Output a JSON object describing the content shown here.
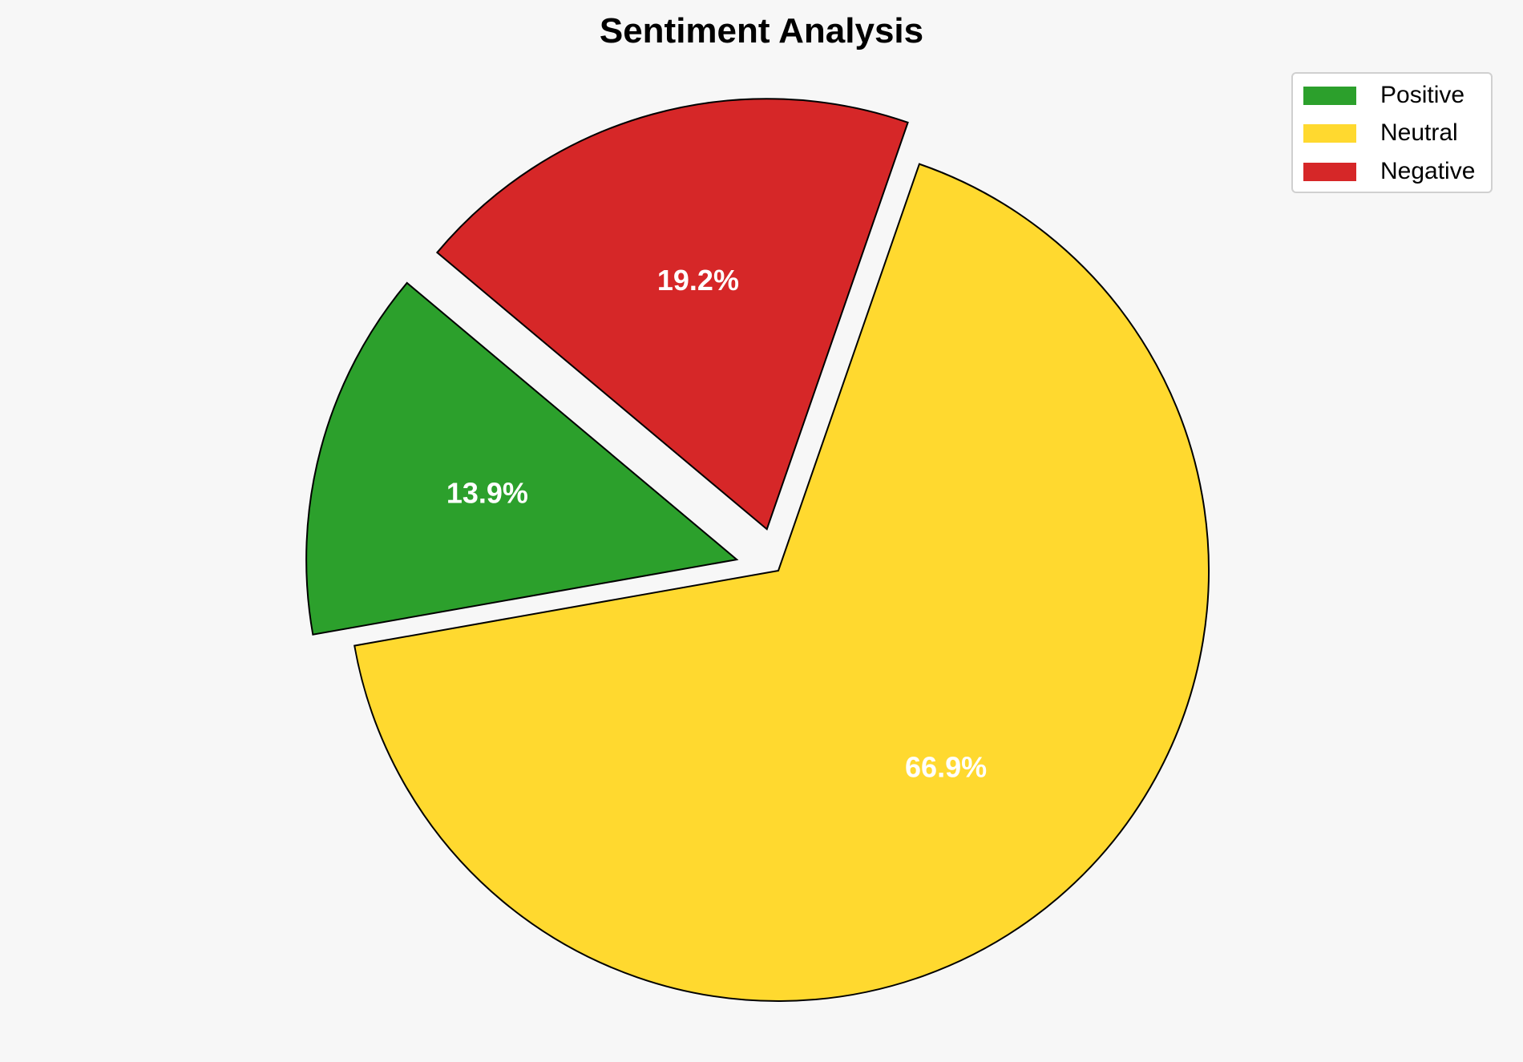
{
  "chart_data": {
    "type": "pie",
    "title": "Sentiment Analysis",
    "labels": [
      "Positive",
      "Neutral",
      "Negative"
    ],
    "values": [
      13.9,
      66.9,
      19.2
    ],
    "value_labels": [
      "13.9%",
      "66.9%",
      "19.2%"
    ],
    "colors": [
      "#2ca02c",
      "#ffd92f",
      "#d62728"
    ],
    "explode": [
      0.1,
      0,
      0.1
    ],
    "start_angle": 140,
    "direction": "counterclockwise",
    "edge_color": "#000000",
    "label_color": "#ffffff",
    "legend": {
      "position": "top-right",
      "entries": [
        "Positive",
        "Neutral",
        "Negative"
      ]
    }
  }
}
